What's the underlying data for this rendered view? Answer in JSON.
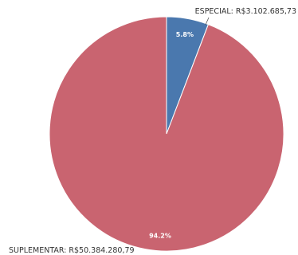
{
  "chart_data": {
    "type": "pie",
    "slices": [
      {
        "name": "ESPECIAL",
        "value": 3102685.73,
        "value_label": "R$3.102.685,73",
        "percent_label": "5.8%",
        "color": "#4a78ae",
        "outer_label": "ESPECIAL: R$3.102.685,73"
      },
      {
        "name": "SUPLEMENTAR",
        "value": 50384280.79,
        "value_label": "R$50.384.280,79",
        "percent_label": "94.2%",
        "color": "#c96470",
        "outer_label": "SUPLEMENTAR: R$50.384.280,79"
      }
    ],
    "start_angle_deg": 0,
    "direction": "clockwise"
  }
}
